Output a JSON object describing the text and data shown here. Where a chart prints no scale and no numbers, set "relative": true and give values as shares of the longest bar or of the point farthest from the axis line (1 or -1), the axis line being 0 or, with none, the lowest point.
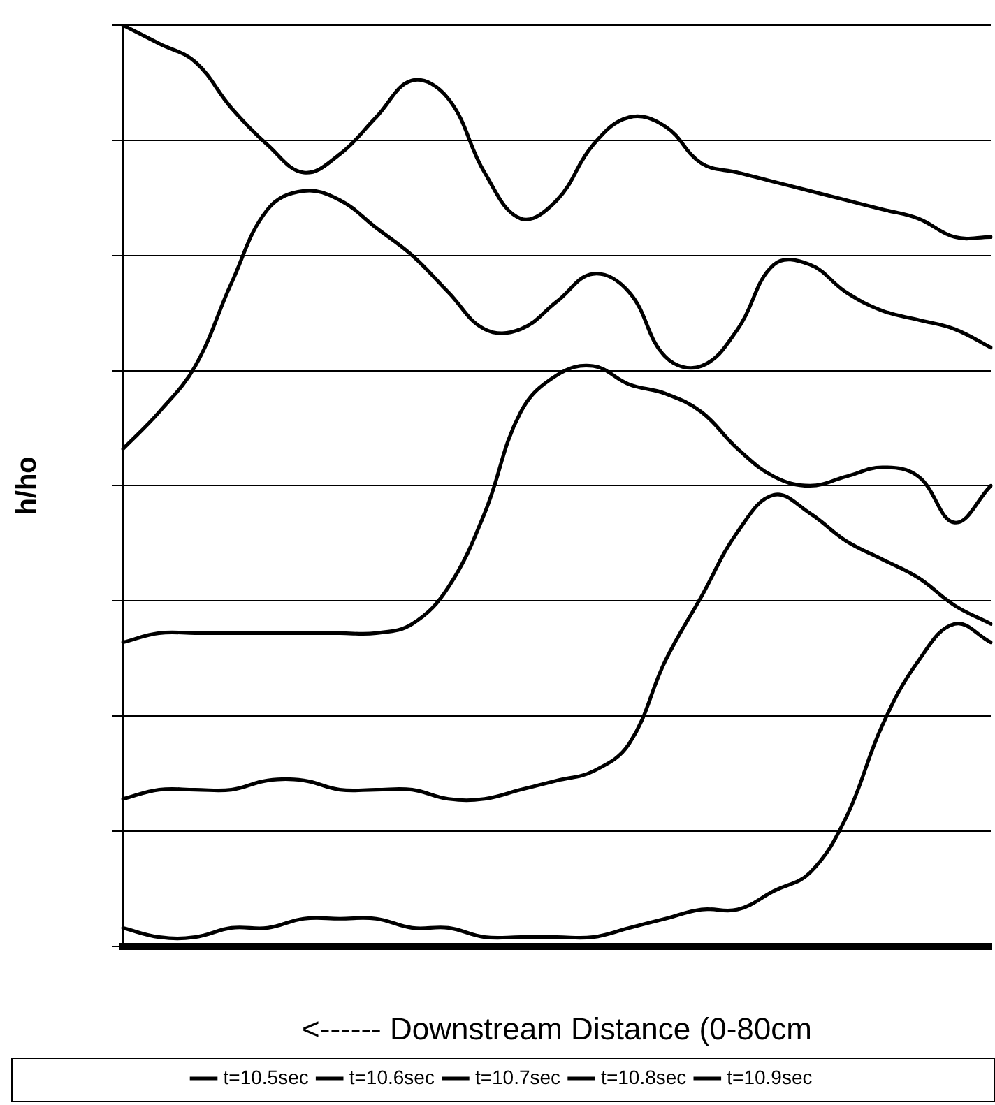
{
  "chart_data": {
    "type": "line",
    "relative": true,
    "ylabel": "h/ho",
    "xlabel": "<------ Downstream Distance (0-80cm",
    "categories": [
      null,
      null,
      null,
      null,
      null,
      null,
      null,
      null,
      null,
      null,
      null,
      null,
      null,
      null,
      null,
      null,
      null,
      null,
      null,
      null,
      null,
      null,
      null,
      null,
      null
    ],
    "series": [
      {
        "name": "t=10.5sec",
        "color": "#000000",
        "values": [
          0.02,
          0.01,
          0.01,
          0.02,
          0.02,
          0.03,
          0.03,
          0.03,
          0.02,
          0.02,
          0.01,
          0.01,
          0.01,
          0.01,
          0.02,
          0.03,
          0.04,
          0.04,
          0.06,
          0.08,
          0.14,
          0.24,
          0.31,
          0.35,
          0.33
        ]
      },
      {
        "name": "t=10.6sec",
        "color": "#000000",
        "values": [
          0.16,
          0.17,
          0.17,
          0.17,
          0.18,
          0.18,
          0.17,
          0.17,
          0.17,
          0.16,
          0.16,
          0.17,
          0.18,
          0.19,
          0.22,
          0.31,
          0.38,
          0.45,
          0.49,
          0.47,
          0.44,
          0.42,
          0.4,
          0.37,
          0.35
        ]
      },
      {
        "name": "t=10.7sec",
        "color": "#000000",
        "values": [
          0.33,
          0.34,
          0.34,
          0.34,
          0.34,
          0.34,
          0.34,
          0.34,
          0.35,
          0.39,
          0.47,
          0.58,
          0.62,
          0.63,
          0.61,
          0.6,
          0.58,
          0.54,
          0.51,
          0.5,
          0.51,
          0.52,
          0.51,
          0.46,
          0.5
        ]
      },
      {
        "name": "t=10.8sec",
        "color": "#000000",
        "values": [
          0.54,
          0.58,
          0.63,
          0.72,
          0.8,
          0.82,
          0.81,
          0.78,
          0.75,
          0.71,
          0.67,
          0.67,
          0.7,
          0.73,
          0.71,
          0.64,
          0.63,
          0.67,
          0.74,
          0.74,
          0.71,
          0.69,
          0.68,
          0.67,
          0.65
        ]
      },
      {
        "name": "t=10.9sec",
        "color": "#000000",
        "values": [
          1.0,
          0.98,
          0.96,
          0.91,
          0.87,
          0.84,
          0.86,
          0.9,
          0.94,
          0.92,
          0.84,
          0.79,
          0.81,
          0.87,
          0.9,
          0.89,
          0.85,
          0.84,
          0.83,
          0.82,
          0.81,
          0.8,
          0.79,
          0.77,
          0.77
        ]
      }
    ],
    "grid": "y",
    "legend": "bottom",
    "marker": "none",
    "line_style": "solid"
  }
}
